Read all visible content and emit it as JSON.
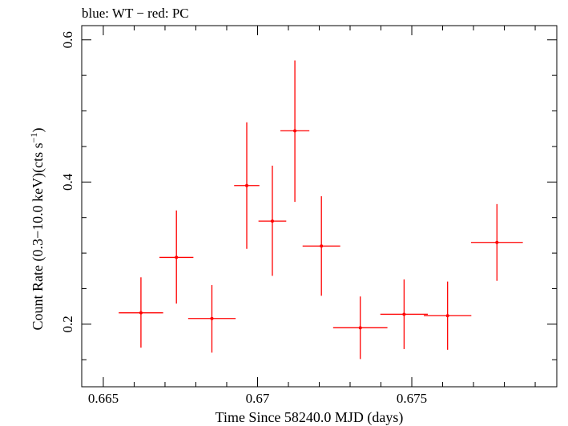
{
  "chart_data": {
    "type": "scatter",
    "title": "blue: WT − red: PC",
    "xlabel": "Time Since 58240.0 MJD (days)",
    "ylabel": "Count Rate (0.3−10.0 keV)(cts s",
    "ylabel_sup": "−1",
    "ylabel_close": ")",
    "xlim": [
      0.6643,
      0.6797
    ],
    "ylim": [
      0.112,
      0.62
    ],
    "x_ticks": [
      0.665,
      0.67,
      0.675
    ],
    "x_tick_labels": [
      "0.665",
      "0.67",
      "0.675"
    ],
    "y_ticks": [
      0.2,
      0.4,
      0.6
    ],
    "y_tick_labels": [
      "0.2",
      "0.4",
      "0.6"
    ],
    "grid": false,
    "series": [
      {
        "color": "#ff0000",
        "points": [
          {
            "x": 0.66622,
            "y": 0.216,
            "xerr_lo": 0.00072,
            "xerr_hi": 0.00072,
            "yerr_lo": 0.049,
            "yerr_hi": 0.05
          },
          {
            "x": 0.66737,
            "y": 0.294,
            "xerr_lo": 0.00055,
            "xerr_hi": 0.00055,
            "yerr_lo": 0.065,
            "yerr_hi": 0.066
          },
          {
            "x": 0.66852,
            "y": 0.208,
            "xerr_lo": 0.00077,
            "xerr_hi": 0.00077,
            "yerr_lo": 0.048,
            "yerr_hi": 0.047
          },
          {
            "x": 0.66965,
            "y": 0.395,
            "xerr_lo": 0.00041,
            "xerr_hi": 0.00041,
            "yerr_lo": 0.089,
            "yerr_hi": 0.089
          },
          {
            "x": 0.67048,
            "y": 0.345,
            "xerr_lo": 0.00045,
            "xerr_hi": 0.00045,
            "yerr_lo": 0.077,
            "yerr_hi": 0.078
          },
          {
            "x": 0.67121,
            "y": 0.472,
            "xerr_lo": 0.00047,
            "xerr_hi": 0.00047,
            "yerr_lo": 0.1,
            "yerr_hi": 0.099
          },
          {
            "x": 0.67207,
            "y": 0.31,
            "xerr_lo": 0.00061,
            "xerr_hi": 0.00061,
            "yerr_lo": 0.07,
            "yerr_hi": 0.07
          },
          {
            "x": 0.67333,
            "y": 0.195,
            "xerr_lo": 0.00088,
            "xerr_hi": 0.00088,
            "yerr_lo": 0.044,
            "yerr_hi": 0.044
          },
          {
            "x": 0.67475,
            "y": 0.214,
            "xerr_lo": 0.00077,
            "xerr_hi": 0.00077,
            "yerr_lo": 0.049,
            "yerr_hi": 0.049
          },
          {
            "x": 0.67616,
            "y": 0.212,
            "xerr_lo": 0.00077,
            "xerr_hi": 0.00077,
            "yerr_lo": 0.048,
            "yerr_hi": 0.048
          },
          {
            "x": 0.67776,
            "y": 0.315,
            "xerr_lo": 0.00084,
            "xerr_hi": 0.00084,
            "yerr_lo": 0.054,
            "yerr_hi": 0.054
          }
        ]
      }
    ]
  }
}
